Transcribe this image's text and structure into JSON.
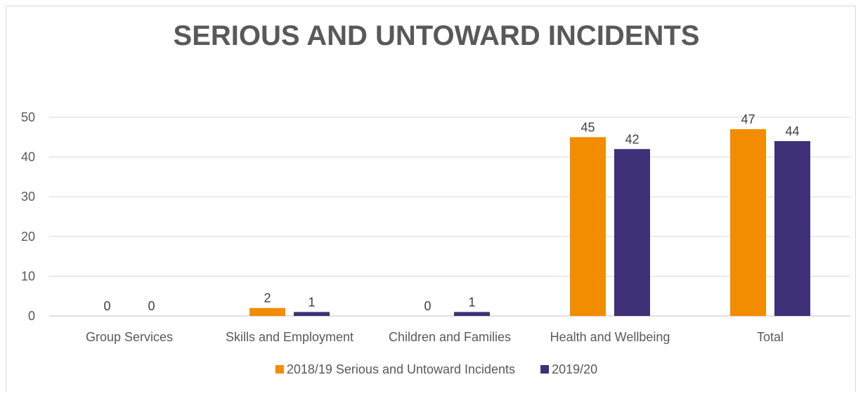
{
  "chart_data": {
    "type": "bar",
    "title": "SERIOUS AND UNTOWARD INCIDENTS",
    "xlabel": "",
    "ylabel": "",
    "ylim": [
      0,
      50
    ],
    "yticks": [
      "0",
      "10",
      "20",
      "30",
      "40",
      "50"
    ],
    "categories": [
      "Group Services",
      "Skills and Employment",
      "Children and Families",
      "Health and Wellbeing",
      "Total"
    ],
    "series": [
      {
        "name": "2018/19 Serious and Untoward Incidents",
        "color": "#F28C00",
        "values": [
          0,
          2,
          0,
          45,
          47
        ]
      },
      {
        "name": "2019/20",
        "color": "#3F3078",
        "values": [
          0,
          1,
          1,
          42,
          44
        ]
      }
    ],
    "grid": true,
    "legend": "bottom",
    "data_labels": true
  }
}
